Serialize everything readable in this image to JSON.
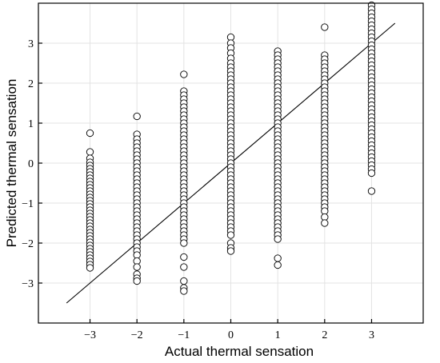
{
  "chart_data": {
    "type": "scatter",
    "title": "",
    "xlabel": "Actual thermal sensation",
    "ylabel": "Predicted thermal sensation",
    "xlim": [
      -4.1,
      4.1
    ],
    "ylim": [
      -4.0,
      4.0
    ],
    "xticks": [
      -3,
      -2,
      -1,
      0,
      1,
      2,
      3
    ],
    "xtick_labels": [
      "−3",
      "−2",
      "−1",
      "0",
      "1",
      "2",
      "3"
    ],
    "yticks": [
      -3,
      -2,
      -1,
      0,
      1,
      2,
      3
    ],
    "ytick_labels": [
      "−3",
      "−2",
      "−1",
      "0",
      "1",
      "2",
      "3"
    ],
    "grid": true,
    "reference_line": {
      "from": [
        -3.5,
        -3.5
      ],
      "to": [
        3.5,
        3.5
      ]
    },
    "series": [
      {
        "marker": "open-circle",
        "points": [
          [
            -3,
            0.75
          ],
          [
            -3,
            0.28
          ],
          [
            -3,
            0.12
          ],
          [
            -3,
            0.02
          ],
          [
            -3,
            -0.06
          ],
          [
            -3,
            -0.14
          ],
          [
            -3,
            -0.22
          ],
          [
            -3,
            -0.3
          ],
          [
            -3,
            -0.38
          ],
          [
            -3,
            -0.46
          ],
          [
            -3,
            -0.54
          ],
          [
            -3,
            -0.62
          ],
          [
            -3,
            -0.7
          ],
          [
            -3,
            -0.78
          ],
          [
            -3,
            -0.86
          ],
          [
            -3,
            -0.94
          ],
          [
            -3,
            -1.02
          ],
          [
            -3,
            -1.1
          ],
          [
            -3,
            -1.18
          ],
          [
            -3,
            -1.26
          ],
          [
            -3,
            -1.34
          ],
          [
            -3,
            -1.42
          ],
          [
            -3,
            -1.5
          ],
          [
            -3,
            -1.58
          ],
          [
            -3,
            -1.66
          ],
          [
            -3,
            -1.74
          ],
          [
            -3,
            -1.82
          ],
          [
            -3,
            -1.9
          ],
          [
            -3,
            -1.98
          ],
          [
            -3,
            -2.06
          ],
          [
            -3,
            -2.14
          ],
          [
            -3,
            -2.22
          ],
          [
            -3,
            -2.3
          ],
          [
            -3,
            -2.38
          ],
          [
            -3,
            -2.46
          ],
          [
            -3,
            -2.54
          ],
          [
            -3,
            -2.62
          ],
          [
            -2,
            1.17
          ],
          [
            -2,
            0.72
          ],
          [
            -2,
            0.6
          ],
          [
            -2,
            0.5
          ],
          [
            -2,
            0.4
          ],
          [
            -2,
            0.3
          ],
          [
            -2,
            0.2
          ],
          [
            -2,
            0.1
          ],
          [
            -2,
            0.0
          ],
          [
            -2,
            -0.1
          ],
          [
            -2,
            -0.2
          ],
          [
            -2,
            -0.3
          ],
          [
            -2,
            -0.4
          ],
          [
            -2,
            -0.5
          ],
          [
            -2,
            -0.6
          ],
          [
            -2,
            -0.7
          ],
          [
            -2,
            -0.8
          ],
          [
            -2,
            -0.9
          ],
          [
            -2,
            -1.0
          ],
          [
            -2,
            -1.1
          ],
          [
            -2,
            -1.2
          ],
          [
            -2,
            -1.3
          ],
          [
            -2,
            -1.4
          ],
          [
            -2,
            -1.5
          ],
          [
            -2,
            -1.6
          ],
          [
            -2,
            -1.7
          ],
          [
            -2,
            -1.8
          ],
          [
            -2,
            -1.9
          ],
          [
            -2,
            -2.0
          ],
          [
            -2,
            -2.1
          ],
          [
            -2,
            -2.2
          ],
          [
            -2,
            -2.3
          ],
          [
            -2,
            -2.45
          ],
          [
            -2,
            -2.6
          ],
          [
            -2,
            -2.78
          ],
          [
            -2,
            -2.88
          ],
          [
            -2,
            -2.95
          ],
          [
            -1,
            2.22
          ],
          [
            -1,
            1.8
          ],
          [
            -1,
            1.7
          ],
          [
            -1,
            1.6
          ],
          [
            -1,
            1.5
          ],
          [
            -1,
            1.4
          ],
          [
            -1,
            1.3
          ],
          [
            -1,
            1.2
          ],
          [
            -1,
            1.1
          ],
          [
            -1,
            1.0
          ],
          [
            -1,
            0.9
          ],
          [
            -1,
            0.8
          ],
          [
            -1,
            0.7
          ],
          [
            -1,
            0.6
          ],
          [
            -1,
            0.5
          ],
          [
            -1,
            0.4
          ],
          [
            -1,
            0.3
          ],
          [
            -1,
            0.2
          ],
          [
            -1,
            0.1
          ],
          [
            -1,
            0.0
          ],
          [
            -1,
            -0.1
          ],
          [
            -1,
            -0.2
          ],
          [
            -1,
            -0.3
          ],
          [
            -1,
            -0.4
          ],
          [
            -1,
            -0.5
          ],
          [
            -1,
            -0.6
          ],
          [
            -1,
            -0.7
          ],
          [
            -1,
            -0.8
          ],
          [
            -1,
            -0.9
          ],
          [
            -1,
            -1.0
          ],
          [
            -1,
            -1.1
          ],
          [
            -1,
            -1.2
          ],
          [
            -1,
            -1.3
          ],
          [
            -1,
            -1.4
          ],
          [
            -1,
            -1.5
          ],
          [
            -1,
            -1.6
          ],
          [
            -1,
            -1.7
          ],
          [
            -1,
            -1.8
          ],
          [
            -1,
            -1.9
          ],
          [
            -1,
            -2.0
          ],
          [
            -1,
            -2.35
          ],
          [
            -1,
            -2.6
          ],
          [
            -1,
            -2.95
          ],
          [
            -1,
            -3.12
          ],
          [
            -1,
            -3.2
          ],
          [
            0,
            3.15
          ],
          [
            0,
            3.0
          ],
          [
            0,
            2.88
          ],
          [
            0,
            2.75
          ],
          [
            0,
            2.62
          ],
          [
            0,
            2.5
          ],
          [
            0,
            2.4
          ],
          [
            0,
            2.3
          ],
          [
            0,
            2.2
          ],
          [
            0,
            2.1
          ],
          [
            0,
            2.0
          ],
          [
            0,
            1.9
          ],
          [
            0,
            1.8
          ],
          [
            0,
            1.7
          ],
          [
            0,
            1.6
          ],
          [
            0,
            1.5
          ],
          [
            0,
            1.4
          ],
          [
            0,
            1.3
          ],
          [
            0,
            1.2
          ],
          [
            0,
            1.1
          ],
          [
            0,
            1.0
          ],
          [
            0,
            0.9
          ],
          [
            0,
            0.8
          ],
          [
            0,
            0.7
          ],
          [
            0,
            0.6
          ],
          [
            0,
            0.5
          ],
          [
            0,
            0.4
          ],
          [
            0,
            0.3
          ],
          [
            0,
            0.2
          ],
          [
            0,
            0.1
          ],
          [
            0,
            0.0
          ],
          [
            0,
            -0.1
          ],
          [
            0,
            -0.2
          ],
          [
            0,
            -0.3
          ],
          [
            0,
            -0.4
          ],
          [
            0,
            -0.5
          ],
          [
            0,
            -0.6
          ],
          [
            0,
            -0.7
          ],
          [
            0,
            -0.8
          ],
          [
            0,
            -0.9
          ],
          [
            0,
            -1.0
          ],
          [
            0,
            -1.1
          ],
          [
            0,
            -1.2
          ],
          [
            0,
            -1.3
          ],
          [
            0,
            -1.4
          ],
          [
            0,
            -1.5
          ],
          [
            0,
            -1.6
          ],
          [
            0,
            -1.7
          ],
          [
            0,
            -1.8
          ],
          [
            0,
            -2.0
          ],
          [
            0,
            -2.12
          ],
          [
            0,
            -2.2
          ],
          [
            1,
            2.8
          ],
          [
            1,
            2.7
          ],
          [
            1,
            2.6
          ],
          [
            1,
            2.5
          ],
          [
            1,
            2.4
          ],
          [
            1,
            2.3
          ],
          [
            1,
            2.2
          ],
          [
            1,
            2.1
          ],
          [
            1,
            2.0
          ],
          [
            1,
            1.9
          ],
          [
            1,
            1.8
          ],
          [
            1,
            1.7
          ],
          [
            1,
            1.6
          ],
          [
            1,
            1.5
          ],
          [
            1,
            1.4
          ],
          [
            1,
            1.3
          ],
          [
            1,
            1.2
          ],
          [
            1,
            1.1
          ],
          [
            1,
            1.0
          ],
          [
            1,
            0.9
          ],
          [
            1,
            0.8
          ],
          [
            1,
            0.7
          ],
          [
            1,
            0.6
          ],
          [
            1,
            0.5
          ],
          [
            1,
            0.4
          ],
          [
            1,
            0.3
          ],
          [
            1,
            0.2
          ],
          [
            1,
            0.1
          ],
          [
            1,
            0.0
          ],
          [
            1,
            -0.1
          ],
          [
            1,
            -0.2
          ],
          [
            1,
            -0.3
          ],
          [
            1,
            -0.4
          ],
          [
            1,
            -0.5
          ],
          [
            1,
            -0.6
          ],
          [
            1,
            -0.7
          ],
          [
            1,
            -0.8
          ],
          [
            1,
            -0.9
          ],
          [
            1,
            -1.0
          ],
          [
            1,
            -1.1
          ],
          [
            1,
            -1.2
          ],
          [
            1,
            -1.3
          ],
          [
            1,
            -1.4
          ],
          [
            1,
            -1.5
          ],
          [
            1,
            -1.6
          ],
          [
            1,
            -1.7
          ],
          [
            1,
            -1.8
          ],
          [
            1,
            -1.9
          ],
          [
            1,
            -2.38
          ],
          [
            1,
            -2.55
          ],
          [
            2,
            3.4
          ],
          [
            2,
            2.7
          ],
          [
            2,
            2.6
          ],
          [
            2,
            2.5
          ],
          [
            2,
            2.4
          ],
          [
            2,
            2.3
          ],
          [
            2,
            2.2
          ],
          [
            2,
            2.1
          ],
          [
            2,
            2.0
          ],
          [
            2,
            1.9
          ],
          [
            2,
            1.8
          ],
          [
            2,
            1.7
          ],
          [
            2,
            1.6
          ],
          [
            2,
            1.5
          ],
          [
            2,
            1.4
          ],
          [
            2,
            1.3
          ],
          [
            2,
            1.2
          ],
          [
            2,
            1.1
          ],
          [
            2,
            1.0
          ],
          [
            2,
            0.9
          ],
          [
            2,
            0.8
          ],
          [
            2,
            0.7
          ],
          [
            2,
            0.6
          ],
          [
            2,
            0.5
          ],
          [
            2,
            0.4
          ],
          [
            2,
            0.3
          ],
          [
            2,
            0.2
          ],
          [
            2,
            0.1
          ],
          [
            2,
            0.0
          ],
          [
            2,
            -0.1
          ],
          [
            2,
            -0.2
          ],
          [
            2,
            -0.3
          ],
          [
            2,
            -0.4
          ],
          [
            2,
            -0.5
          ],
          [
            2,
            -0.6
          ],
          [
            2,
            -0.7
          ],
          [
            2,
            -0.8
          ],
          [
            2,
            -0.9
          ],
          [
            2,
            -1.0
          ],
          [
            2,
            -1.1
          ],
          [
            2,
            -1.2
          ],
          [
            2,
            -1.35
          ],
          [
            2,
            -1.5
          ],
          [
            3,
            3.95
          ],
          [
            3,
            3.85
          ],
          [
            3,
            3.75
          ],
          [
            3,
            3.65
          ],
          [
            3,
            3.55
          ],
          [
            3,
            3.45
          ],
          [
            3,
            3.35
          ],
          [
            3,
            3.25
          ],
          [
            3,
            3.15
          ],
          [
            3,
            3.05
          ],
          [
            3,
            2.95
          ],
          [
            3,
            2.85
          ],
          [
            3,
            2.75
          ],
          [
            3,
            2.65
          ],
          [
            3,
            2.55
          ],
          [
            3,
            2.45
          ],
          [
            3,
            2.35
          ],
          [
            3,
            2.25
          ],
          [
            3,
            2.15
          ],
          [
            3,
            2.05
          ],
          [
            3,
            1.95
          ],
          [
            3,
            1.85
          ],
          [
            3,
            1.75
          ],
          [
            3,
            1.65
          ],
          [
            3,
            1.55
          ],
          [
            3,
            1.45
          ],
          [
            3,
            1.35
          ],
          [
            3,
            1.25
          ],
          [
            3,
            1.15
          ],
          [
            3,
            1.05
          ],
          [
            3,
            0.95
          ],
          [
            3,
            0.85
          ],
          [
            3,
            0.75
          ],
          [
            3,
            0.65
          ],
          [
            3,
            0.55
          ],
          [
            3,
            0.45
          ],
          [
            3,
            0.35
          ],
          [
            3,
            0.25
          ],
          [
            3,
            0.15
          ],
          [
            3,
            0.05
          ],
          [
            3,
            -0.05
          ],
          [
            3,
            -0.15
          ],
          [
            3,
            -0.25
          ],
          [
            3,
            -0.7
          ]
        ]
      }
    ]
  }
}
